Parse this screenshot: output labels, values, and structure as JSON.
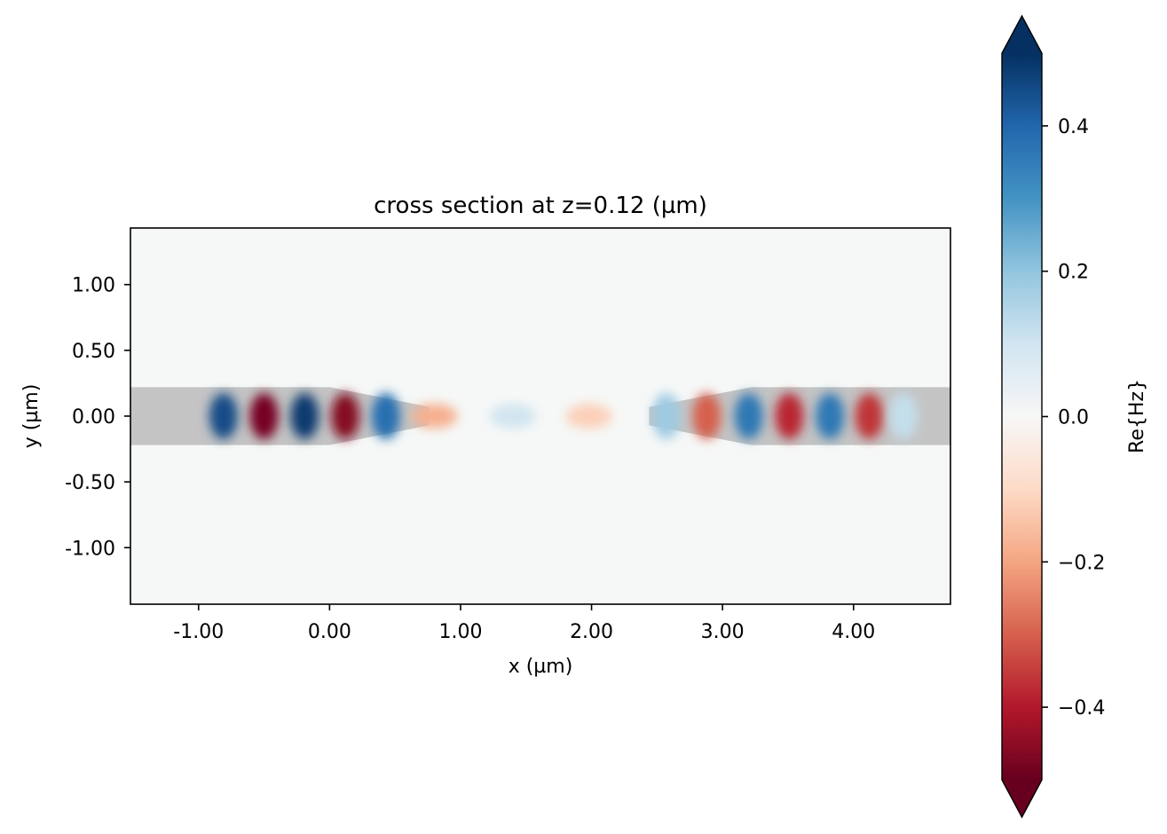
{
  "chart_data": {
    "type": "heatmap",
    "title": "cross section at z=0.12 (µm)",
    "xlabel": "x (µm)",
    "ylabel": "y (µm)",
    "xlim": [
      -1.52,
      4.74
    ],
    "ylim": [
      -1.43,
      1.43
    ],
    "x_ticks": [
      -1.0,
      0.0,
      1.0,
      2.0,
      3.0,
      4.0
    ],
    "x_tick_labels": [
      "-1.00",
      "0.00",
      "1.00",
      "2.00",
      "3.00",
      "4.00"
    ],
    "y_ticks": [
      1.0,
      0.5,
      0.0,
      -0.5,
      -1.0
    ],
    "y_tick_labels": [
      "1.00",
      "0.50",
      "0.00",
      "-0.50",
      "-1.00"
    ],
    "grid": false,
    "field": {
      "description": "Re{Hz} standing-wave field along waveguide axis",
      "lobes": [
        {
          "x": -0.81,
          "value": 0.45
        },
        {
          "x": -0.5,
          "value": -0.48
        },
        {
          "x": -0.19,
          "value": 0.48
        },
        {
          "x": 0.12,
          "value": -0.46
        },
        {
          "x": 0.43,
          "value": 0.38
        },
        {
          "x": 0.8,
          "value": -0.18
        },
        {
          "x": 1.4,
          "value": 0.1
        },
        {
          "x": 1.98,
          "value": -0.12
        },
        {
          "x": 2.57,
          "value": 0.18
        },
        {
          "x": 2.88,
          "value": -0.3
        },
        {
          "x": 3.2,
          "value": 0.36
        },
        {
          "x": 3.51,
          "value": -0.38
        },
        {
          "x": 3.82,
          "value": 0.36
        },
        {
          "x": 4.12,
          "value": -0.36
        },
        {
          "x": 4.38,
          "value": 0.12
        }
      ]
    },
    "structures": {
      "waveguide_half_width": 0.22,
      "left_waveguide_x": [
        -1.52,
        0.0
      ],
      "left_taper_x": [
        0.0,
        0.76
      ],
      "right_taper_x": [
        2.44,
        3.22
      ],
      "right_waveguide_x": [
        3.22,
        4.74
      ],
      "taper_tip_half_width": 0.07,
      "fill_color": "#c4c4c4"
    },
    "colorbar": {
      "label": "Re{Hz}",
      "range": [
        -0.5,
        0.5
      ],
      "ticks": [
        0.4,
        0.2,
        0.0,
        -0.2,
        -0.4
      ],
      "tick_labels": [
        "0.4",
        "0.2",
        "0.0",
        "−0.2",
        "−0.4"
      ],
      "colormap": "RdBu",
      "extend": "both"
    }
  },
  "colors": {
    "background": "#f6f8f7",
    "axes_edge": "#000000"
  }
}
